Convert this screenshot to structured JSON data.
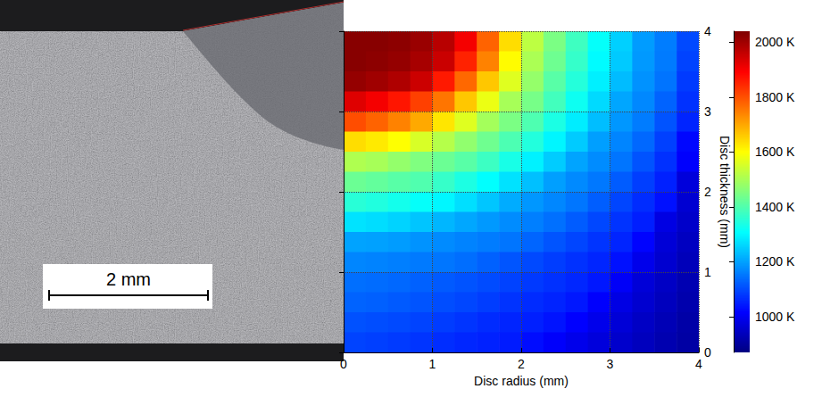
{
  "chart_data": {
    "type": "heatmap",
    "xlabel": "Disc radius (mm)",
    "ylabel": "Disc thickness (mm)",
    "xlim": [
      0,
      4
    ],
    "xticks": [
      0,
      1,
      2,
      3,
      4
    ],
    "ylim": [
      0,
      4
    ],
    "yticks": [
      0,
      1,
      2,
      3,
      4
    ],
    "grid": true,
    "x_edges": [
      0,
      0.25,
      0.5,
      0.75,
      1,
      1.25,
      1.5,
      1.75,
      2,
      2.25,
      2.5,
      2.75,
      3,
      3.25,
      3.5,
      3.75,
      4
    ],
    "y_edges": [
      4,
      3.75,
      3.5,
      3.25,
      3,
      2.75,
      2.5,
      2.25,
      2,
      1.75,
      1.5,
      1.25,
      1,
      0.75,
      0.5,
      0.25,
      0
    ],
    "values": [
      [
        2030,
        2030,
        2025,
        2010,
        1975,
        1905,
        1780,
        1640,
        1525,
        1450,
        1380,
        1315,
        1255,
        1195,
        1160,
        1100
      ],
      [
        2030,
        2025,
        2015,
        1995,
        1955,
        1855,
        1745,
        1605,
        1505,
        1435,
        1370,
        1305,
        1248,
        1192,
        1157,
        1093
      ],
      [
        2015,
        2003,
        1985,
        1952,
        1865,
        1775,
        1665,
        1565,
        1480,
        1410,
        1350,
        1291,
        1232,
        1184,
        1149,
        1083
      ],
      [
        1930,
        1905,
        1870,
        1820,
        1760,
        1665,
        1580,
        1500,
        1445,
        1385,
        1324,
        1266,
        1207,
        1172,
        1130,
        1072
      ],
      [
        1805,
        1780,
        1745,
        1700,
        1630,
        1565,
        1497,
        1450,
        1398,
        1340,
        1288,
        1234,
        1189,
        1158,
        1111,
        1058
      ],
      [
        1640,
        1625,
        1600,
        1557,
        1516,
        1475,
        1436,
        1396,
        1348,
        1299,
        1249,
        1199,
        1169,
        1136,
        1090,
        1023
      ],
      [
        1510,
        1500,
        1478,
        1455,
        1432,
        1410,
        1378,
        1336,
        1294,
        1250,
        1204,
        1177,
        1151,
        1111,
        1071,
        1014
      ],
      [
        1432,
        1422,
        1410,
        1400,
        1371,
        1341,
        1310,
        1275,
        1237,
        1199,
        1175,
        1154,
        1122,
        1087,
        1053,
        975
      ],
      [
        1355,
        1345,
        1330,
        1315,
        1300,
        1272,
        1243,
        1214,
        1190,
        1171,
        1152,
        1124,
        1095,
        1067,
        1035,
        965
      ],
      [
        1277,
        1270,
        1258,
        1242,
        1225,
        1208,
        1192,
        1177,
        1162,
        1145,
        1122,
        1098,
        1075,
        1051,
        984,
        955
      ],
      [
        1203,
        1201,
        1195,
        1185,
        1176,
        1167,
        1159,
        1150,
        1132,
        1113,
        1095,
        1076,
        1058,
        1020,
        970,
        945
      ],
      [
        1170,
        1167,
        1162,
        1156,
        1152,
        1142,
        1128,
        1114,
        1100,
        1086,
        1073,
        1059,
        1035,
        993,
        962,
        937
      ],
      [
        1143,
        1140,
        1135,
        1128,
        1120,
        1111,
        1102,
        1092,
        1082,
        1071,
        1060,
        1043,
        1008,
        972,
        950,
        928
      ],
      [
        1130,
        1126,
        1120,
        1113,
        1105,
        1096,
        1086,
        1075,
        1066,
        1056,
        1043,
        1014,
        985,
        962,
        942,
        922
      ],
      [
        1109,
        1105,
        1100,
        1093,
        1085,
        1076,
        1066,
        1058,
        1052,
        1038,
        1016,
        993,
        970,
        950,
        932,
        915
      ],
      [
        1093,
        1089,
        1083,
        1076,
        1068,
        1060,
        1054,
        1047,
        1030,
        1012,
        993,
        976,
        958,
        942,
        926,
        912
      ]
    ],
    "colorbar": {
      "range": [
        870,
        2040
      ],
      "ticks": [
        {
          "value": 1000,
          "label": "1000 K"
        },
        {
          "value": 1200,
          "label": "1200 K"
        },
        {
          "value": 1400,
          "label": "1400 K"
        },
        {
          "value": 1600,
          "label": "1600 K"
        },
        {
          "value": 1800,
          "label": "1800 K"
        },
        {
          "value": 2000,
          "label": "2000 K"
        }
      ]
    }
  },
  "micrograph": {
    "scale_bar": "2 mm"
  }
}
